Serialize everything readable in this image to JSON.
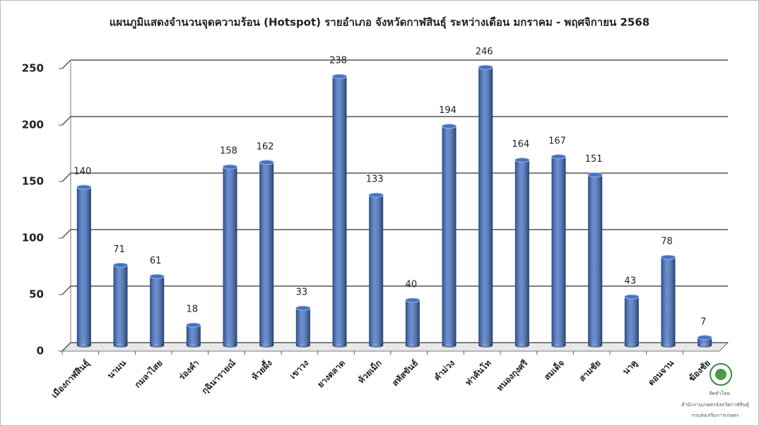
{
  "chart_data": {
    "type": "bar",
    "title": "แผนภูมิแสดงจำนวนจุดความร้อน (Hotspot) รายอำเภอ จังหวัดกาฬสินธุ์ ระหว่างเดือน มกราคม - พฤศจิกายน 2568",
    "categories": [
      "เมืองกาฬสินธุ์",
      "นามน",
      "กมลาไสย",
      "ร่องคำ",
      "กุฉินารายณ์",
      "ห้วยผึ้ง",
      "เขาวง",
      "ยางตลาด",
      "ห้วยเม็ก",
      "สหัสขันธ์",
      "คำม่วง",
      "ท่าคันโท",
      "หนองกุงศรี",
      "สมเด็จ",
      "สามชัย",
      "นาคู",
      "ดอนจาน",
      "ฆ้องชัย"
    ],
    "values": [
      140,
      71,
      61,
      18,
      158,
      162,
      33,
      238,
      133,
      40,
      194,
      246,
      164,
      167,
      151,
      43,
      78,
      7
    ],
    "color": "#4472c4",
    "ylim": [
      0,
      250
    ],
    "yticks": [
      0,
      50,
      100,
      150,
      200,
      250
    ],
    "grid": true,
    "logo": {
      "credit": "จัดทำโดย",
      "office": "สำนักงานเกษตรจังหวัดกาฬสินธุ์",
      "department": "กรมส่งเสริมการเกษตร"
    }
  }
}
